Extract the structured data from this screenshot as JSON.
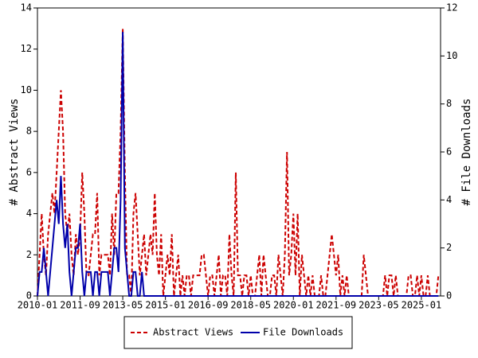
{
  "chart_data": {
    "type": "line",
    "y_label": "# Abstract Views",
    "y2_label": "# File Downloads",
    "x": [
      "2010-01",
      "2010-02",
      "2010-03",
      "2010-04",
      "2010-05",
      "2010-06",
      "2010-07",
      "2010-08",
      "2010-09",
      "2010-10",
      "2010-11",
      "2010-12",
      "2011-01",
      "2011-02",
      "2011-03",
      "2011-04",
      "2011-05",
      "2011-06",
      "2011-07",
      "2011-08",
      "2011-09",
      "2011-10",
      "2011-11",
      "2011-12",
      "2012-01",
      "2012-02",
      "2012-03",
      "2012-04",
      "2012-05",
      "2012-06",
      "2012-07",
      "2012-08",
      "2012-09",
      "2012-10",
      "2012-11",
      "2012-12",
      "2013-01",
      "2013-02",
      "2013-03",
      "2013-04",
      "2013-05",
      "2013-06",
      "2013-07",
      "2013-08",
      "2013-09",
      "2013-10",
      "2013-11",
      "2013-12",
      "2014-01",
      "2014-02",
      "2014-03",
      "2014-04",
      "2014-05",
      "2014-06",
      "2014-07",
      "2014-08",
      "2014-09",
      "2014-10",
      "2014-11",
      "2014-12",
      "2015-01",
      "2015-02",
      "2015-03",
      "2015-04",
      "2015-05",
      "2015-06",
      "2015-07",
      "2015-08",
      "2015-09",
      "2015-10",
      "2015-11",
      "2015-12",
      "2016-01",
      "2016-02",
      "2016-03",
      "2016-04",
      "2016-05",
      "2016-06",
      "2016-07",
      "2016-08",
      "2016-09",
      "2016-10",
      "2016-11",
      "2016-12",
      "2017-01",
      "2017-02",
      "2017-03",
      "2017-04",
      "2017-05",
      "2017-06",
      "2017-07",
      "2017-08",
      "2017-09",
      "2017-10",
      "2017-11",
      "2017-12",
      "2018-01",
      "2018-02",
      "2018-03",
      "2018-04",
      "2018-05",
      "2018-06",
      "2018-07",
      "2018-08",
      "2018-09",
      "2018-10",
      "2018-11",
      "2018-12",
      "2019-01",
      "2019-02",
      "2019-03",
      "2019-04",
      "2019-05",
      "2019-06",
      "2019-07",
      "2019-08",
      "2019-09",
      "2019-10",
      "2019-11",
      "2019-12",
      "2020-01",
      "2020-02",
      "2020-03",
      "2020-04",
      "2020-05",
      "2020-06",
      "2020-07",
      "2020-08",
      "2020-09",
      "2020-10",
      "2020-11",
      "2020-12",
      "2021-01",
      "2021-02",
      "2021-03",
      "2021-04",
      "2021-05",
      "2021-06",
      "2021-07",
      "2021-08",
      "2021-09",
      "2021-10",
      "2021-11",
      "2021-12",
      "2022-01",
      "2022-02",
      "2022-03",
      "2022-04",
      "2022-05",
      "2022-06",
      "2022-07",
      "2022-08",
      "2022-09",
      "2022-10",
      "2022-11",
      "2022-12",
      "2023-01",
      "2023-02",
      "2023-03",
      "2023-04",
      "2023-05",
      "2023-06",
      "2023-07",
      "2023-08",
      "2023-09",
      "2023-10",
      "2023-11",
      "2023-12",
      "2024-01",
      "2024-02",
      "2024-03",
      "2024-04",
      "2024-05",
      "2024-06",
      "2024-07",
      "2024-08",
      "2024-09",
      "2024-10",
      "2024-11",
      "2024-12",
      "2025-01",
      "2025-02",
      "2025-03",
      "2025-04",
      "2025-05",
      "2025-06",
      "2025-07",
      "2025-08",
      "2025-09"
    ],
    "xticks": [
      "2010-01",
      "2011-09",
      "2013-05",
      "2015-01",
      "2016-09",
      "2018-05",
      "2020-01",
      "2021-09",
      "2023-05",
      "2025-01"
    ],
    "ylim": [
      0,
      14
    ],
    "yticks": [
      0,
      2,
      4,
      6,
      8,
      10,
      12,
      14
    ],
    "y2lim": [
      0,
      12
    ],
    "y2ticks": [
      0,
      2,
      4,
      6,
      8,
      10,
      12
    ],
    "legend": "bottom",
    "series": [
      {
        "name": "Abstract Views",
        "color": "#cc0000",
        "dash": true,
        "values": [
          0,
          2,
          4,
          2,
          1,
          3,
          4,
          5,
          4,
          6,
          8,
          10,
          8,
          4,
          3,
          4,
          2,
          1,
          3,
          2,
          3,
          6,
          4,
          1,
          1,
          2,
          3,
          3,
          5,
          1,
          2,
          2,
          2,
          2,
          1,
          4,
          2,
          5,
          5,
          8,
          13,
          6,
          1,
          1,
          0,
          4,
          5,
          3,
          1,
          2,
          3,
          1,
          2,
          3,
          2,
          5,
          2,
          1,
          3,
          0,
          1,
          2,
          1,
          3,
          0,
          1,
          2,
          0,
          1,
          0,
          1,
          1,
          0,
          1,
          1,
          1,
          1,
          2,
          2,
          1,
          0,
          1,
          1,
          0,
          1,
          2,
          0,
          1,
          1,
          0,
          3,
          1,
          0,
          6,
          1,
          1,
          0,
          1,
          1,
          0,
          1,
          0,
          0,
          1,
          2,
          0,
          2,
          1,
          0,
          0,
          1,
          1,
          0,
          2,
          1,
          0,
          2,
          7,
          1,
          2,
          4,
          1,
          4,
          0,
          2,
          1,
          0,
          1,
          0,
          1,
          0,
          0,
          0,
          1,
          0,
          0,
          1,
          2,
          3,
          2,
          1,
          2,
          0,
          1,
          0,
          1,
          0,
          0,
          0,
          0,
          0,
          0,
          0,
          2,
          1,
          0,
          0,
          0,
          0,
          0,
          0,
          0,
          0,
          1,
          0,
          1,
          1,
          0,
          1,
          0,
          0,
          0,
          0,
          0,
          1,
          1,
          0,
          0,
          1,
          0,
          1,
          0,
          0,
          1,
          0,
          0,
          0,
          0,
          1
        ]
      },
      {
        "name": "File Downloads",
        "color": "#0000aa",
        "axis": "y2",
        "values": [
          0,
          1,
          1,
          2,
          1,
          0,
          1,
          2,
          3,
          4,
          3,
          5,
          3,
          2,
          3,
          1,
          0,
          1,
          2,
          2,
          3,
          1,
          0,
          1,
          1,
          1,
          0,
          1,
          1,
          0,
          1,
          1,
          1,
          1,
          0,
          1,
          2,
          2,
          1,
          4,
          11,
          2,
          1,
          0,
          0,
          1,
          1,
          0,
          0,
          1,
          0,
          0,
          0,
          0,
          0,
          0,
          0,
          0,
          0,
          0,
          0,
          0,
          0,
          0,
          0,
          0,
          0,
          0,
          0,
          0,
          0,
          0,
          0,
          0,
          0,
          0,
          0,
          0,
          0,
          0,
          0,
          0,
          0,
          0,
          0,
          0,
          0,
          0,
          0,
          0,
          0,
          0,
          0,
          0,
          0,
          0,
          0,
          0,
          0,
          0,
          0,
          0,
          0,
          0,
          0,
          0,
          0,
          0,
          0,
          0,
          0,
          0,
          0,
          0,
          0,
          0,
          0,
          0,
          0,
          0,
          0,
          0,
          0,
          0,
          0,
          0,
          0,
          0,
          0,
          0,
          0,
          0,
          0,
          0,
          0,
          0,
          0,
          0,
          0,
          0,
          0,
          0,
          0,
          0,
          0,
          0,
          0,
          0,
          0,
          0,
          0,
          0,
          0,
          0,
          0,
          0,
          0,
          0,
          0,
          0,
          0,
          0,
          0,
          0,
          0,
          0,
          0,
          0,
          0,
          0,
          0,
          0,
          0,
          0,
          0,
          0,
          0,
          0,
          0,
          0,
          0,
          0,
          0,
          0,
          0,
          0,
          0,
          0,
          0
        ]
      }
    ]
  }
}
